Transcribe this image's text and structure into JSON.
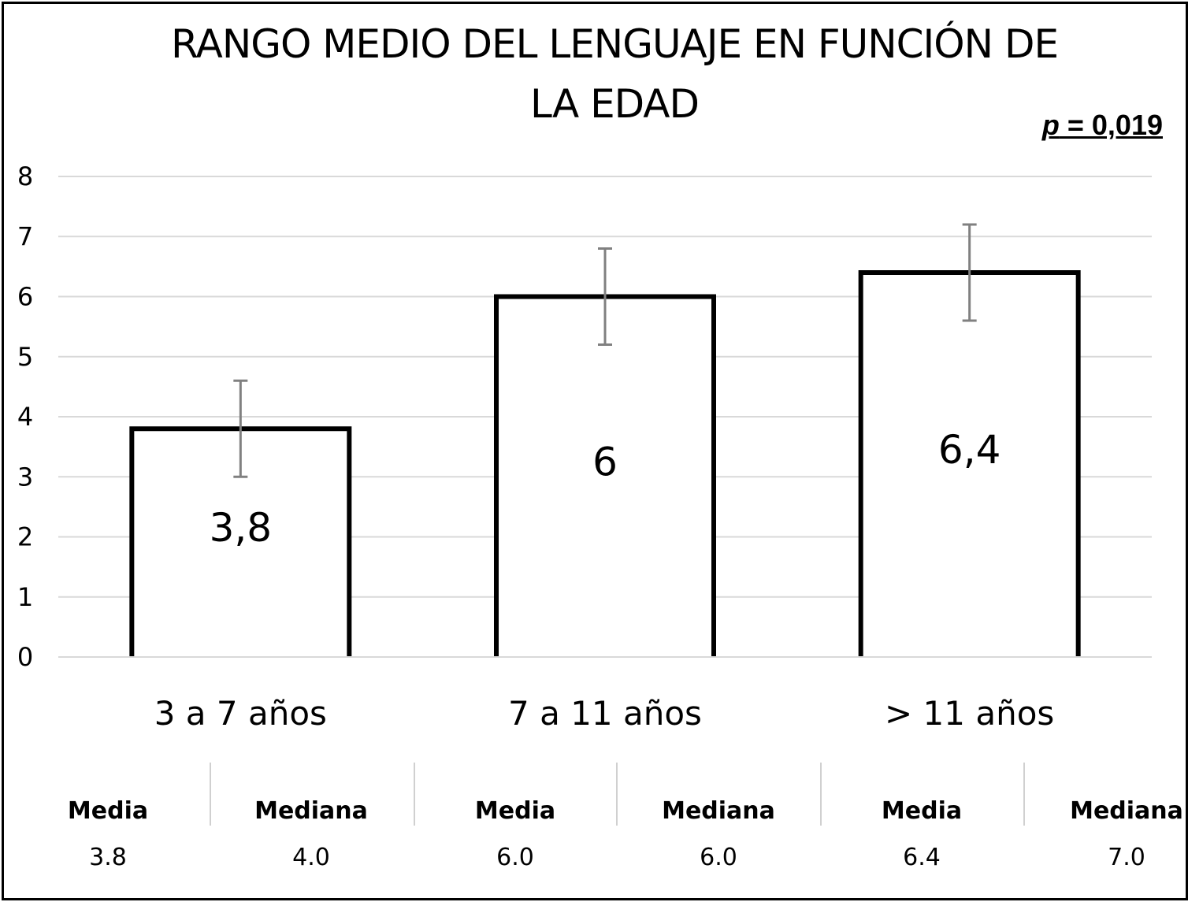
{
  "chart_data": {
    "type": "bar",
    "title_lines": [
      "RANGO MEDIO DEL LENGUAJE EN FUNCIÓN DE",
      "LA EDAD"
    ],
    "annotation": {
      "p_label": "p",
      "p_rest": " = 0,019"
    },
    "categories": [
      "3 a 7 años",
      "7 a 11 años",
      "> 11 años"
    ],
    "values": [
      3.8,
      6.0,
      6.4
    ],
    "value_labels": [
      "3,8",
      "6",
      "6,4"
    ],
    "error_bars": [
      {
        "low": 3.0,
        "high": 4.6
      },
      {
        "low": 5.2,
        "high": 6.8
      },
      {
        "low": 5.6,
        "high": 7.2
      }
    ],
    "ylim": [
      0,
      8
    ],
    "yticks": [
      "0",
      "1",
      "2",
      "3",
      "4",
      "5",
      "6",
      "7",
      "8"
    ],
    "grid": true,
    "bar_fill": "#ffffff",
    "bar_stroke": "#000000",
    "grid_color": "#d9d9d9",
    "error_color": "#808080"
  },
  "table": {
    "groups": [
      {
        "media_label": "Media",
        "mediana_label": "Mediana",
        "media": "3.8",
        "mediana": "4.0"
      },
      {
        "media_label": "Media",
        "mediana_label": "Mediana",
        "media": "6.0",
        "mediana": "6.0"
      },
      {
        "media_label": "Media",
        "mediana_label": "Mediana",
        "media": "6.4",
        "mediana": "7.0"
      }
    ]
  }
}
